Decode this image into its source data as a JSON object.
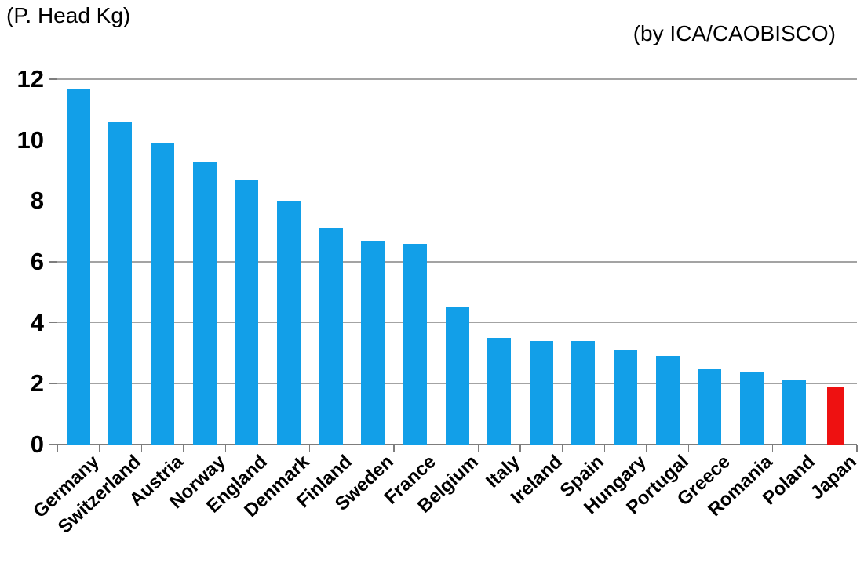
{
  "header": {
    "unit_label": "(P. Head Kg)",
    "source_label": "(by ICA/CAOBISCO)"
  },
  "chart_data": {
    "type": "bar",
    "title": "",
    "unit_annotation": "(P. Head Kg)",
    "source_annotation": "(by ICA/CAOBISCO)",
    "categories": [
      "Germany",
      "Switzerland",
      "Austria",
      "Norway",
      "England",
      "Denmark",
      "Finland",
      "Sweden",
      "France",
      "Belgium",
      "Italy",
      "Ireland",
      "Spain",
      "Hungary",
      "Portugal",
      "Greece",
      "Romania",
      "Poland",
      "Japan"
    ],
    "values": [
      11.7,
      10.6,
      9.9,
      9.3,
      8.7,
      8.0,
      7.1,
      6.7,
      6.6,
      4.5,
      3.5,
      3.4,
      3.4,
      3.1,
      2.9,
      2.5,
      2.4,
      2.1,
      1.9
    ],
    "xlabel": "",
    "ylabel": "",
    "ylim": [
      0,
      12
    ],
    "yticks": [
      0,
      2,
      4,
      6,
      8,
      10,
      12
    ],
    "grid": true,
    "legend_position": "none",
    "bar_color": "#129fe8",
    "highlight_color": "#ee1111",
    "highlight_index": 18,
    "highlight_category": "Japan"
  },
  "colors": {
    "background": "#ffffff",
    "grid": "#a3a3a3",
    "axis": "#7d7d7d",
    "text": "#000000"
  }
}
